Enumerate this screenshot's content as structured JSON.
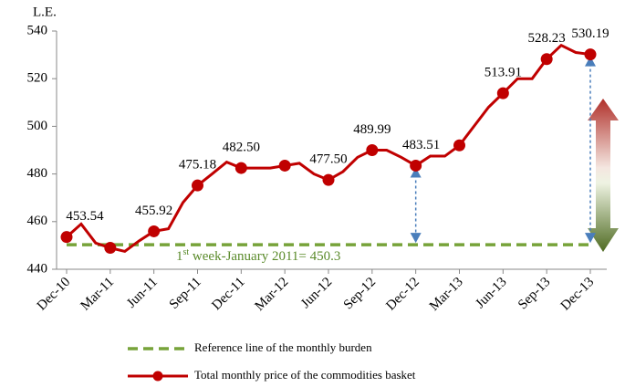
{
  "chart_data": {
    "type": "line",
    "y_label": "L.E.",
    "categories": [
      "Dec-10",
      null,
      null,
      "Mar-11",
      null,
      null,
      "Jun-11",
      null,
      null,
      "Sep-11",
      null,
      null,
      "Dec-11",
      null,
      null,
      "Mar-12",
      null,
      null,
      "Jun-12",
      null,
      null,
      "Sep-12",
      null,
      null,
      "Dec-12",
      null,
      null,
      "Mar-13",
      null,
      null,
      "Jun-13",
      null,
      null,
      "Sep-13",
      null,
      null,
      "Dec-13"
    ],
    "series": [
      {
        "name": "Total monthly price of the commodities basket",
        "color": "#c00000",
        "values": [
          453.54,
          459,
          451,
          449,
          447.5,
          452,
          455.92,
          457,
          468,
          475.18,
          480,
          485,
          482.5,
          482.5,
          482.5,
          483.5,
          484.5,
          480,
          477.5,
          481,
          487,
          489.99,
          490,
          487,
          483.51,
          487.5,
          487.5,
          492,
          500,
          508,
          513.91,
          520,
          520,
          528.23,
          534,
          531,
          530.19
        ],
        "value_labels": [
          "453.54",
          null,
          null,
          null,
          null,
          null,
          "455.92",
          null,
          null,
          "475.18",
          null,
          null,
          "482.50",
          null,
          null,
          null,
          null,
          null,
          "477.50",
          null,
          null,
          "489.99",
          null,
          null,
          "483.51",
          null,
          null,
          null,
          null,
          null,
          "513.91",
          null,
          null,
          "528.23",
          null,
          null,
          "530.19"
        ]
      }
    ],
    "reference_line": {
      "name": "Reference line of the monthly burden",
      "color": "#77a33a",
      "value": 450.3,
      "annotation": {
        "base": "1",
        "sup": "st",
        "rest": " week-January 2011= 450.3"
      }
    },
    "ylim": [
      440,
      540
    ],
    "yticks": [
      440,
      460,
      480,
      500,
      520,
      540
    ]
  }
}
